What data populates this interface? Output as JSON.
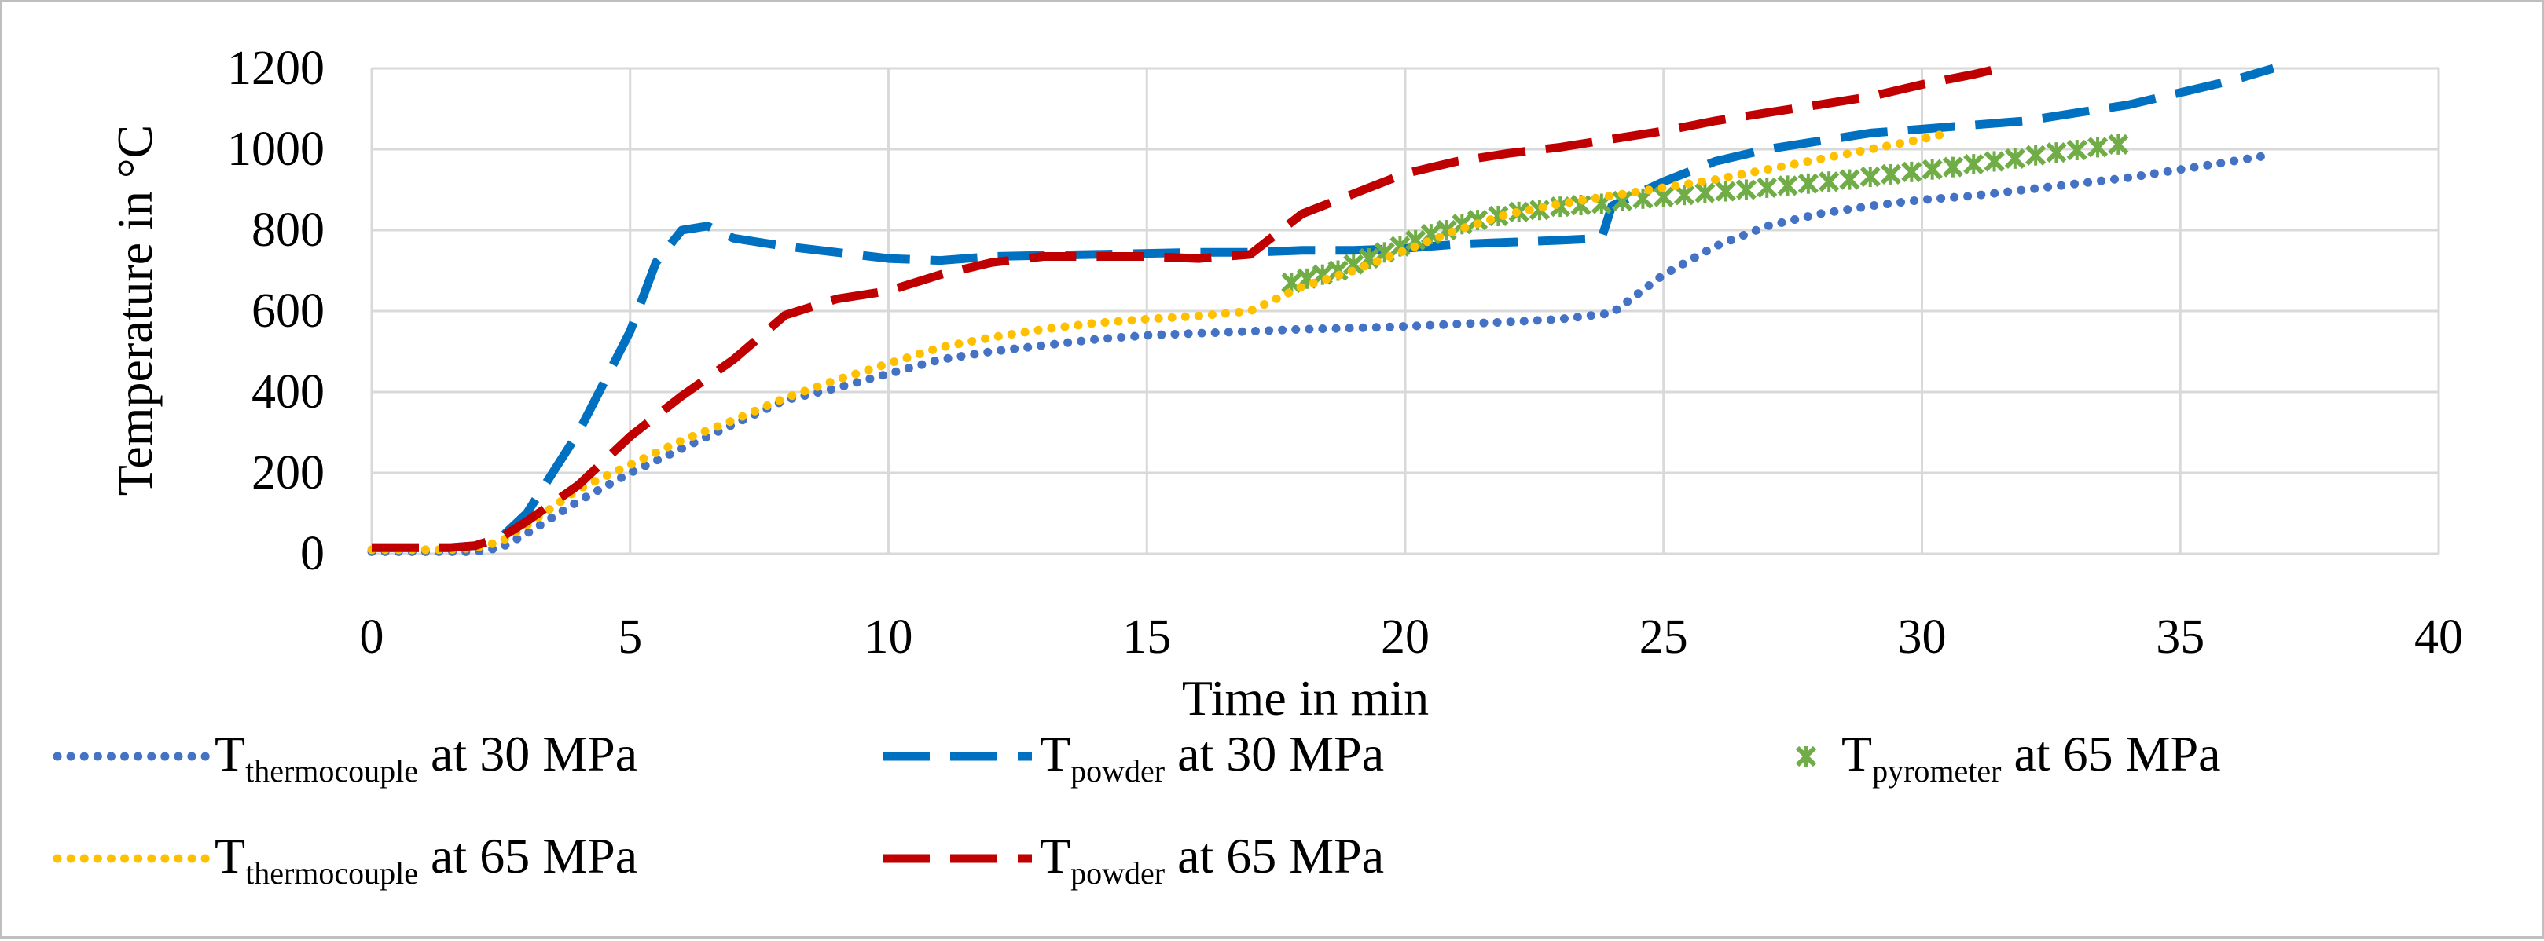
{
  "chart_data": {
    "type": "line",
    "title": "",
    "xlabel": "Time in min",
    "ylabel": "Temperature in °C",
    "xlim": [
      0,
      40
    ],
    "ylim": [
      0,
      1200
    ],
    "xticks": [
      0,
      5,
      10,
      15,
      20,
      25,
      30,
      35,
      40
    ],
    "yticks": [
      0,
      200,
      400,
      600,
      800,
      1000,
      1200
    ],
    "grid": true,
    "legend_position": "bottom",
    "series": [
      {
        "id": "tc30",
        "legend": {
          "main": "T",
          "sub": "thermocouple",
          "rest": " at 30 MPa"
        },
        "color": "#4472c4",
        "style": "dotted",
        "x": [
          0,
          1.5,
          2,
          2.5,
          3,
          4,
          5,
          6,
          7,
          8,
          9,
          10,
          11,
          12,
          13,
          14,
          15,
          16,
          17,
          18,
          19,
          20,
          21,
          22,
          23,
          24,
          25,
          26,
          27,
          28,
          29,
          30,
          31,
          32,
          33,
          34,
          35,
          36,
          36.7
        ],
        "y": [
          5,
          5,
          5,
          15,
          50,
          130,
          200,
          260,
          320,
          380,
          410,
          445,
          480,
          500,
          515,
          530,
          540,
          545,
          550,
          555,
          558,
          562,
          568,
          573,
          580,
          595,
          690,
          760,
          810,
          840,
          860,
          875,
          885,
          900,
          915,
          930,
          950,
          970,
          985
        ]
      },
      {
        "id": "tp30",
        "legend": {
          "main": "T",
          "sub": "powder",
          "rest": " at 30 MPa"
        },
        "color": "#0070c0",
        "style": "dashed",
        "x": [
          0,
          1.5,
          2,
          2.5,
          3,
          4,
          5,
          5.5,
          6,
          6.5,
          7,
          8,
          9,
          10,
          11,
          12,
          14,
          16,
          17,
          18,
          19,
          20,
          21,
          22,
          23,
          23.8,
          24,
          25,
          26,
          27,
          28,
          29,
          30,
          31,
          32,
          33,
          34,
          35,
          36,
          36.8
        ],
        "y": [
          15,
          15,
          20,
          40,
          100,
          300,
          550,
          720,
          800,
          810,
          780,
          760,
          745,
          730,
          725,
          735,
          740,
          745,
          745,
          750,
          750,
          755,
          765,
          770,
          775,
          780,
          860,
          920,
          970,
          1000,
          1020,
          1040,
          1050,
          1060,
          1070,
          1090,
          1110,
          1140,
          1170,
          1200
        ]
      },
      {
        "id": "py65",
        "legend": {
          "main": "T",
          "sub": "pyrometer",
          "rest": " at 65 MPa"
        },
        "color": "#70ad47",
        "style": "marker",
        "x": [
          17.8,
          18.1,
          18.4,
          18.7,
          19,
          19.3,
          19.6,
          19.9,
          20.2,
          20.5,
          20.8,
          21.1,
          21.4,
          21.8,
          22.2,
          22.6,
          23,
          23.4,
          23.8,
          24.2,
          24.6,
          25,
          25.4,
          25.8,
          26.2,
          26.6,
          27,
          27.4,
          27.8,
          28.2,
          28.6,
          29,
          29.4,
          29.8,
          30.2,
          30.6,
          31,
          31.4,
          31.8,
          32.2,
          32.6,
          33,
          33.4,
          33.8
        ],
        "y": [
          670,
          680,
          690,
          700,
          715,
          730,
          745,
          760,
          775,
          790,
          800,
          815,
          825,
          835,
          845,
          850,
          858,
          862,
          865,
          872,
          878,
          882,
          887,
          892,
          896,
          900,
          905,
          910,
          915,
          920,
          925,
          932,
          938,
          944,
          950,
          956,
          963,
          970,
          977,
          985,
          992,
          998,
          1005,
          1012
        ]
      },
      {
        "id": "tc65",
        "legend": {
          "main": "T",
          "sub": "thermocouple",
          "rest": " at 65 MPa"
        },
        "color": "#ffc000",
        "style": "dotted",
        "x": [
          0,
          1.5,
          2,
          2.5,
          3,
          4,
          5,
          6,
          7,
          8,
          9,
          10,
          11,
          12,
          13,
          14,
          15,
          16,
          17,
          18,
          19,
          20,
          21,
          22,
          23,
          24,
          25,
          26,
          27,
          28,
          29,
          30,
          30.5
        ],
        "y": [
          10,
          10,
          15,
          30,
          70,
          160,
          220,
          280,
          330,
          385,
          430,
          470,
          510,
          535,
          555,
          570,
          580,
          588,
          600,
          660,
          700,
          750,
          800,
          840,
          865,
          885,
          905,
          925,
          950,
          975,
          1000,
          1025,
          1040
        ]
      },
      {
        "id": "tp65",
        "legend": {
          "main": "T",
          "sub": "powder",
          "rest": " at 65 MPa"
        },
        "color": "#c00000",
        "style": "dashed",
        "x": [
          0,
          1.5,
          2,
          2.5,
          3,
          4,
          5,
          6,
          7,
          8,
          9,
          10,
          11,
          12,
          13,
          14,
          15,
          16,
          17,
          18,
          19,
          20,
          21,
          22,
          23,
          24,
          25,
          26,
          27,
          28,
          29,
          30,
          31,
          31.5
        ],
        "y": [
          15,
          15,
          20,
          40,
          80,
          170,
          290,
          390,
          480,
          590,
          630,
          650,
          690,
          720,
          735,
          735,
          735,
          730,
          740,
          840,
          890,
          940,
          970,
          990,
          1005,
          1025,
          1045,
          1070,
          1090,
          1110,
          1130,
          1160,
          1185,
          1200
        ]
      }
    ]
  }
}
